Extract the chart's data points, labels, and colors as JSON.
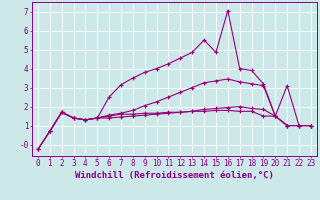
{
  "bg_color": "#cce8e8",
  "grid_color": "#aacccc",
  "line_color": "#990077",
  "xlabel": "Windchill (Refroidissement éolien,°C)",
  "xlim": [
    -0.5,
    23.5
  ],
  "ylim": [
    -0.6,
    7.5
  ],
  "yticks": [
    0,
    1,
    2,
    3,
    4,
    5,
    6,
    7
  ],
  "ytick_labels": [
    "-0",
    "1",
    "2",
    "3",
    "4",
    "5",
    "6",
    "7"
  ],
  "xticks": [
    0,
    1,
    2,
    3,
    4,
    5,
    6,
    7,
    8,
    9,
    10,
    11,
    12,
    13,
    14,
    15,
    16,
    17,
    18,
    19,
    20,
    21,
    22,
    23
  ],
  "line1_x": [
    0,
    1,
    2,
    3,
    4,
    5,
    6,
    7,
    8,
    9,
    10,
    11,
    12,
    13,
    14,
    15,
    16,
    17,
    18,
    19,
    20,
    21,
    22,
    23
  ],
  "line1_y": [
    -0.25,
    0.7,
    1.7,
    1.4,
    1.3,
    1.4,
    2.5,
    3.15,
    3.5,
    3.8,
    4.0,
    4.25,
    4.55,
    4.85,
    5.5,
    4.85,
    7.05,
    4.0,
    3.9,
    3.2,
    1.5,
    3.1,
    1.0,
    1.0
  ],
  "line2_x": [
    0,
    1,
    2,
    3,
    4,
    5,
    6,
    7,
    8,
    9,
    10,
    11,
    12,
    13,
    14,
    15,
    16,
    17,
    18,
    19,
    20,
    21,
    22,
    23
  ],
  "line2_y": [
    -0.25,
    0.7,
    1.7,
    1.4,
    1.3,
    1.4,
    1.55,
    1.65,
    1.8,
    2.05,
    2.25,
    2.5,
    2.75,
    3.0,
    3.25,
    3.35,
    3.45,
    3.3,
    3.2,
    3.1,
    1.5,
    1.0,
    1.0,
    1.0
  ],
  "line3_x": [
    1,
    2,
    3,
    4,
    5,
    6,
    7,
    8,
    9,
    10,
    11,
    12,
    13,
    14,
    15,
    16,
    17,
    18,
    19,
    20,
    21,
    22,
    23
  ],
  "line3_y": [
    0.7,
    1.7,
    1.4,
    1.3,
    1.4,
    1.4,
    1.45,
    1.5,
    1.55,
    1.6,
    1.65,
    1.7,
    1.75,
    1.85,
    1.9,
    1.95,
    2.0,
    1.9,
    1.85,
    1.5,
    1.0,
    1.0,
    1.0
  ],
  "line4_x": [
    0,
    1,
    2,
    3,
    4,
    5,
    6,
    7,
    8,
    9,
    10,
    11,
    12,
    13,
    14,
    15,
    16,
    17,
    18,
    19,
    20,
    21,
    22,
    23
  ],
  "line4_y": [
    -0.25,
    0.7,
    1.7,
    1.4,
    1.3,
    1.4,
    1.5,
    1.6,
    1.6,
    1.65,
    1.65,
    1.7,
    1.7,
    1.75,
    1.75,
    1.8,
    1.8,
    1.75,
    1.75,
    1.5,
    1.5,
    1.0,
    1.0,
    1.0
  ],
  "marker": "+",
  "markersize": 3,
  "markeredgewidth": 0.8,
  "linewidth": 0.8,
  "font_color": "#880088",
  "tick_fontsize": 5.5,
  "xlabel_fontsize": 6.5
}
